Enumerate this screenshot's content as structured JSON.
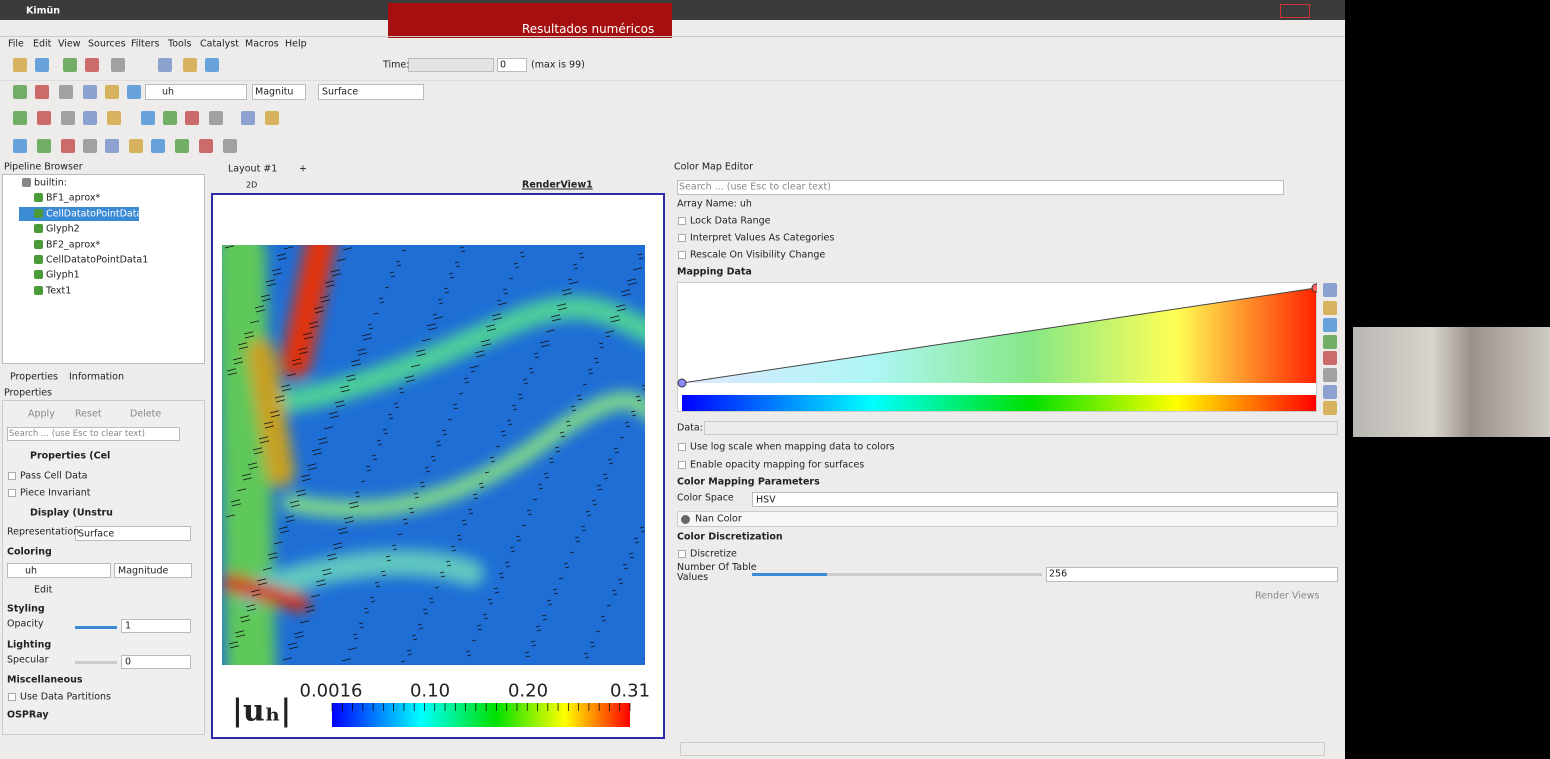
{
  "system_bar": {
    "app": "Kimün",
    "window_title": "Resultados numéricos"
  },
  "menu": [
    "File",
    "Edit",
    "View",
    "Sources",
    "Filters",
    "Tools",
    "Catalyst",
    "Macros",
    "Help"
  ],
  "toolbar": {
    "time_label": "Time:",
    "time_step": "0",
    "max_note": "(max is 99)",
    "array": "uh",
    "component": "Magnitu",
    "representation": "Surface"
  },
  "pipeline": {
    "title": "Pipeline Browser",
    "items": [
      "builtin:",
      "BF1_aprox*",
      "CellDatatoPointData2",
      "Glyph2",
      "BF2_aprox*",
      "CellDatatoPointData1",
      "Glyph1",
      "Text1"
    ]
  },
  "properties": {
    "tabs": [
      "Properties",
      "Information"
    ],
    "title": "Properties",
    "buttons": [
      "Apply",
      "Reset",
      "Delete"
    ],
    "search": "Search ... (use Esc to clear text)",
    "section_properties": "Properties (Cel",
    "pass_cell_data": "Pass Cell Data",
    "piece_invariant": "Piece Invariant",
    "section_display": "Display (Unstru",
    "representation_label": "Representation",
    "representation": "Surface",
    "coloring": "Coloring",
    "color_array": "uh",
    "color_component": "Magnitude",
    "edit": "Edit",
    "styling": "Styling",
    "opacity_label": "Opacity",
    "opacity": "1",
    "lighting": "Lighting",
    "specular_label": "Specular",
    "specular": "0",
    "miscellaneous": "Miscellaneous",
    "use_data_partitions": "Use Data Partitions",
    "ospray": "OSPRay"
  },
  "layout": {
    "tab": "Layout #1",
    "add_tab": "+",
    "mode": "2D",
    "view": "RenderView1"
  },
  "legend": {
    "title": "|uₕ|",
    "labels": [
      "0.0016",
      "0.10",
      "0.20",
      "0.31"
    ]
  },
  "color_map_editor": {
    "title": "Color Map Editor",
    "search": "Search ... (use Esc to clear text)",
    "array_name": "Array Name: uh",
    "lock_data_range": "Lock Data Range",
    "interpret_categories": "Interpret Values As Categories",
    "rescale_visibility": "Rescale On Visibility Change",
    "mapping_data": "Mapping Data",
    "data_label": "Data:",
    "log_scale": "Use log scale when mapping data to colors",
    "opacity_mapping": "Enable opacity mapping for surfaces",
    "mapping_parameters": "Color Mapping Parameters",
    "color_space_label": "Color Space",
    "color_space": "HSV",
    "nan_color": "Nan Color",
    "discretization": "Color Discretization",
    "discretize": "Discretize",
    "table_values_label": "Number Of Table Values",
    "table_values": "256",
    "render_views": "Render Views"
  }
}
